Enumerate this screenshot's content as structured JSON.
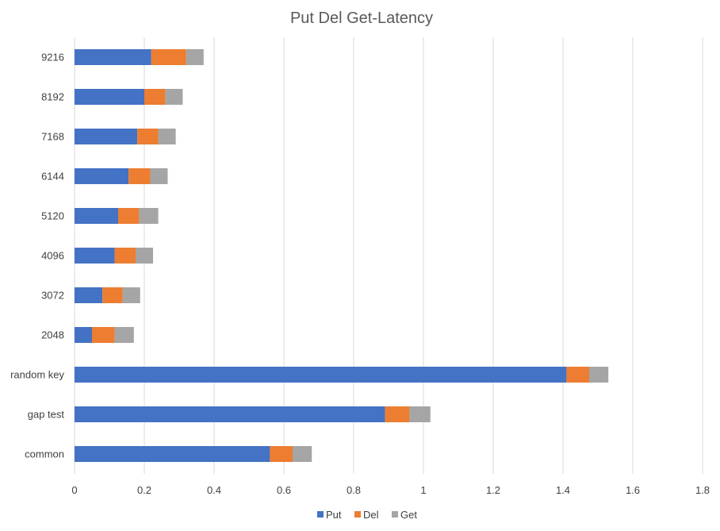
{
  "chart_data": {
    "type": "bar",
    "orientation": "horizontal",
    "stacked": true,
    "title": "Put Del Get-Latency",
    "xlabel": "",
    "ylabel": "",
    "categories": [
      "common",
      "gap test",
      "random key",
      "2048",
      "3072",
      "4096",
      "5120",
      "6144",
      "7168",
      "8192",
      "9216"
    ],
    "series": [
      {
        "name": "Put",
        "color": "#4472C4",
        "values": [
          0.56,
          0.89,
          1.41,
          0.05,
          0.08,
          0.115,
          0.125,
          0.155,
          0.18,
          0.2,
          0.22
        ]
      },
      {
        "name": "Del",
        "color": "#ED7D31",
        "values": [
          0.065,
          0.07,
          0.065,
          0.065,
          0.058,
          0.06,
          0.06,
          0.062,
          0.06,
          0.06,
          0.1
        ]
      },
      {
        "name": "Get",
        "color": "#A5A5A5",
        "values": [
          0.055,
          0.06,
          0.055,
          0.055,
          0.05,
          0.05,
          0.055,
          0.05,
          0.05,
          0.05,
          0.05
        ]
      }
    ],
    "xlim": [
      0,
      1.8
    ],
    "xticks": [
      "0",
      "0.2",
      "0.4",
      "0.6",
      "0.8",
      "1",
      "1.2",
      "1.4",
      "1.6",
      "1.8"
    ],
    "xtick_values": [
      0,
      0.2,
      0.4,
      0.6,
      0.8,
      1.0,
      1.2,
      1.4,
      1.6,
      1.8
    ],
    "grid": true,
    "legend_position": "bottom"
  }
}
